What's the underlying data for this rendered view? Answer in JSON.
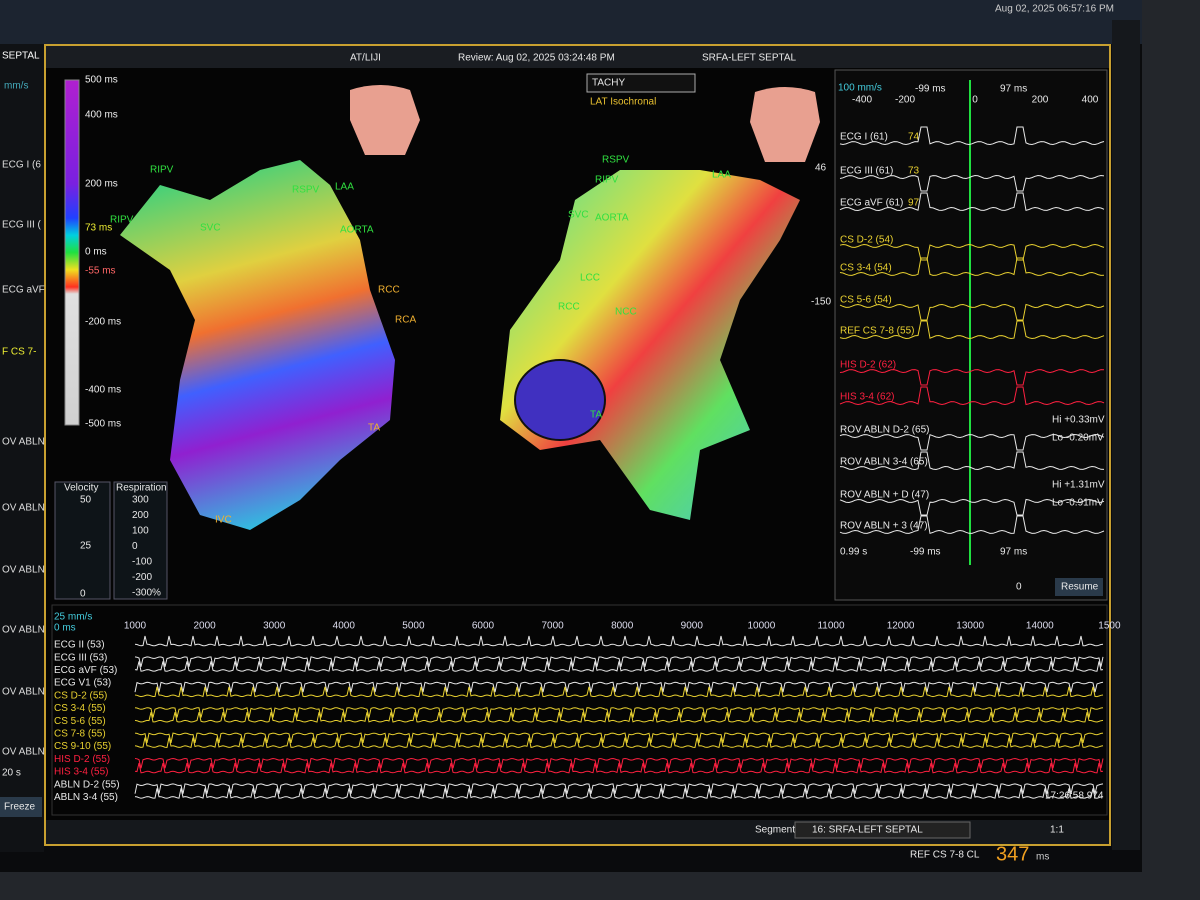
{
  "top_bar": {
    "datetime": "Aug 02, 2025 06:57:16 PM"
  },
  "left_panel": {
    "title": "SEPTAL",
    "speed": "mm/s",
    "channels": [
      "ECG I (6",
      "ECG III (",
      "ECG aVF",
      "F CS 7-",
      "OV ABLN",
      "OV ABLN",
      "OV ABLN",
      "OV ABLN",
      "OV ABLN",
      "OV ABLN"
    ],
    "duration": "20 s",
    "button": "Freeze"
  },
  "window": {
    "user": "AT/LIJI",
    "review": "Review: Aug 02, 2025 03:24:48 PM",
    "study": "SRFA-LEFT SEPTAL"
  },
  "map": {
    "dropdown": "TACHY",
    "mode": "LAT Isochronal",
    "color_scale": [
      "500 ms",
      "400 ms",
      "200 ms",
      "73 ms",
      "0 ms",
      "-55 ms",
      "-200 ms",
      "-400 ms",
      "-500 ms"
    ],
    "labels_left": [
      "RIPV",
      "SVC",
      "RSPV",
      "RIPV",
      "LAA",
      "AORTA",
      "RCC",
      "RCA",
      "TA",
      "IVC"
    ],
    "labels_right": [
      "RSPV",
      "RIPV",
      "LAA",
      "SVC",
      "AORTA",
      "LCC",
      "NCC",
      "RCC",
      "TA"
    ]
  },
  "velocity": {
    "title": "Velocity",
    "ticks": [
      "50",
      "25",
      "0"
    ]
  },
  "respiration": {
    "title": "Respiration",
    "ticks": [
      "300",
      "200",
      "100",
      "0",
      "-100",
      "-200",
      "-300%"
    ]
  },
  "tools": {
    "zoom": "46",
    "depth": "-150"
  },
  "signals": {
    "speed": "100 mm/s",
    "axis": [
      "-400",
      "-200",
      "0",
      "200",
      "400"
    ],
    "markers": [
      "-99 ms",
      "97 ms"
    ],
    "channels": [
      {
        "name": "ECG I (61)",
        "value": "74"
      },
      {
        "name": "ECG III (61)",
        "value": "73"
      },
      {
        "name": "ECG aVF (61)",
        "value": "97"
      },
      {
        "name": "CS  D-2 (54)"
      },
      {
        "name": "CS  3-4 (54)"
      },
      {
        "name": "CS  5-6 (54)"
      },
      {
        "name": "REF CS  7-8 (55)"
      },
      {
        "name": "HIS  D-2 (62)"
      },
      {
        "name": "HIS  3-4 (62)"
      },
      {
        "name": "ROV ABLN  D-2 (65)"
      },
      {
        "name": "ROV ABLN  3-4 (65)"
      },
      {
        "name": "ROV ABLN + D (47)"
      },
      {
        "name": "ROV ABLN + 3 (47)"
      }
    ],
    "readouts": [
      "Hi +0.33mV",
      "Lo -0.20mV",
      "Hi +1.31mV",
      "Lo -0.91mV"
    ],
    "footer": [
      "0.99 s",
      "-99 ms",
      "97 ms"
    ],
    "select": "0",
    "button": "Resume"
  },
  "strip": {
    "speed": "25 mm/s",
    "origin": "0 ms",
    "axis": [
      "1000",
      "2000",
      "3000",
      "4000",
      "5000",
      "6000",
      "7000",
      "8000",
      "9000",
      "10000",
      "11000",
      "12000",
      "13000",
      "14000",
      "1500"
    ],
    "channels": [
      "ECG II (53)",
      "ECG III (53)",
      "ECG aVF (53)",
      "ECG V1 (53)",
      "CS  D-2 (55)",
      "CS  3-4 (55)",
      "CS  5-6 (55)",
      "CS  7-8 (55)",
      "CS  9-10 (55)",
      "HIS  D-2 (55)",
      "HIS  3-4 (55)",
      "ABLN  D-2 (55)",
      "ABLN  3-4 (55)"
    ],
    "time": "17:26:58.974"
  },
  "segment": {
    "label": "Segment",
    "value": "16: SRFA-LEFT SEPTAL",
    "zoom": "1:1"
  },
  "status": {
    "label": "REF CS  7-8 CL",
    "cycle_length": "347",
    "unit": "ms"
  }
}
